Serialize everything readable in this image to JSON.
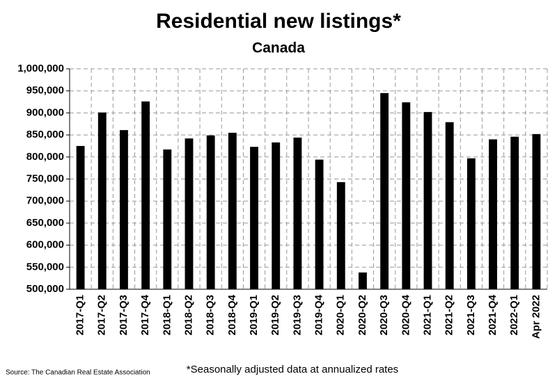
{
  "chart_data": {
    "type": "bar",
    "title": "Residential new listings*",
    "subtitle": "Canada",
    "categories": [
      "2017-Q1",
      "2017-Q2",
      "2017-Q3",
      "2017-Q4",
      "2018-Q1",
      "2018-Q2",
      "2018-Q3",
      "2018-Q4",
      "2019-Q1",
      "2019-Q2",
      "2019-Q3",
      "2019-Q4",
      "2020-Q1",
      "2020-Q2",
      "2020-Q3",
      "2020-Q4",
      "2021-Q1",
      "2021-Q2",
      "2021-Q3",
      "2021-Q4",
      "2022-Q1",
      "Apr 2022"
    ],
    "values": [
      825000,
      901000,
      861000,
      926000,
      817000,
      842000,
      849000,
      855000,
      823000,
      833000,
      844000,
      794000,
      743000,
      538000,
      945000,
      924000,
      902000,
      879000,
      797000,
      840000,
      846000,
      852000
    ],
    "color": "#000000",
    "ylim": [
      500000,
      1000000
    ],
    "yticks": [
      {
        "value": 500000,
        "label": "500,000"
      },
      {
        "value": 550000,
        "label": "550,000"
      },
      {
        "value": 600000,
        "label": "600,000"
      },
      {
        "value": 650000,
        "label": "650,000"
      },
      {
        "value": 700000,
        "label": "700,000"
      },
      {
        "value": 750000,
        "label": "750,000"
      },
      {
        "value": 800000,
        "label": "800,000"
      },
      {
        "value": 850000,
        "label": "850,000"
      },
      {
        "value": 900000,
        "label": "900,000"
      },
      {
        "value": 950000,
        "label": "950,000"
      },
      {
        "value": 1000000,
        "label": "1,000,000"
      }
    ],
    "grid": true,
    "footnote": "*Seasonally adjusted data at annualized rates",
    "source": "Source: The Canadian Real Estate Association"
  }
}
